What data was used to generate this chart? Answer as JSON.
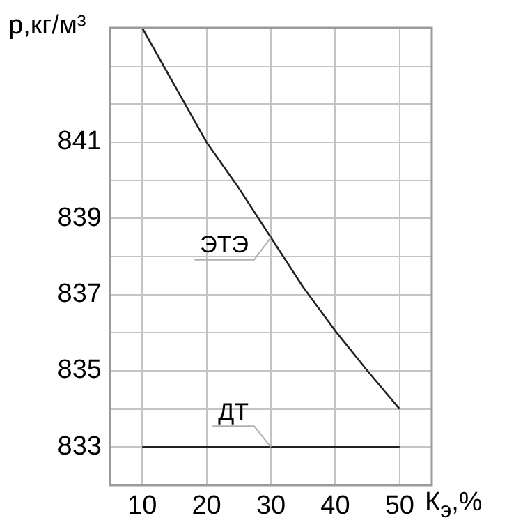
{
  "chart_data": {
    "type": "line",
    "xlabel": "К$_{э}$,%",
    "ylabel": "р,кг/м³",
    "series": [
      {
        "name": "ЭТЭ",
        "color": "#222222",
        "x": [
          10,
          15,
          20,
          25,
          30,
          35,
          40,
          45,
          50
        ],
        "values": [
          844,
          842.5,
          841,
          839.8,
          838.5,
          837.2,
          836.05,
          835,
          834
        ]
      },
      {
        "name": "ДТ",
        "color": "#222222",
        "x": [
          10,
          50
        ],
        "values": [
          833,
          833
        ]
      }
    ],
    "xlim": [
      5,
      55
    ],
    "xticks": [
      10,
      20,
      30,
      40,
      50
    ],
    "ylim": [
      832,
      844
    ],
    "yticks": [
      {
        "value": 832,
        "label": null
      },
      833,
      {
        "value": 834,
        "label": null
      },
      835,
      {
        "value": 836,
        "label": null
      },
      837,
      {
        "value": 838,
        "label": null
      },
      839,
      {
        "value": 840,
        "label": null
      },
      841,
      {
        "value": 842,
        "label": null
      },
      {
        "value": 843,
        "label": null
      },
      {
        "value": 844,
        "label": null
      }
    ],
    "grid": true,
    "legend": false,
    "marker": "none",
    "line_style": "solid"
  }
}
